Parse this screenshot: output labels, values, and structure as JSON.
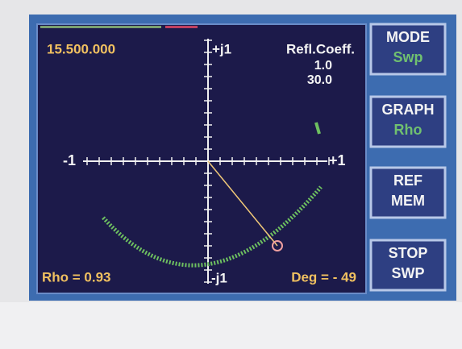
{
  "screen": {
    "frequency": "15.500.000",
    "axis_labels": {
      "top": "+j1",
      "bottom": "-j1",
      "left": "-1",
      "right": "+1"
    },
    "graph_title": "Refl.Coeff.",
    "scale": "1.0",
    "scale2": "30.0",
    "rho": "Rho = 0.93",
    "deg": "Deg = - 49"
  },
  "buttons": [
    {
      "label": "MODE",
      "value": "Swp"
    },
    {
      "label": "GRAPH",
      "value": "Rho"
    },
    {
      "label": "REF",
      "value": "MEM"
    },
    {
      "label": "STOP",
      "value": "SWP"
    }
  ]
}
